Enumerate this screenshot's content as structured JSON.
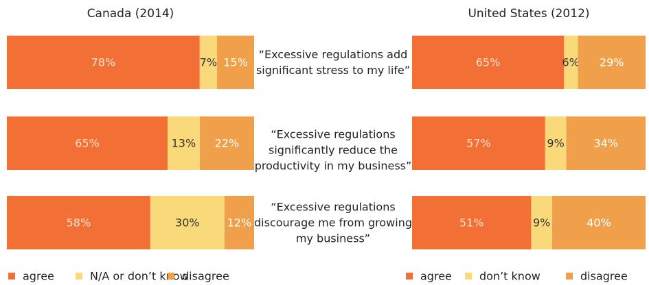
{
  "chart_data": [
    {
      "type": "bar",
      "title": "Canada (2014)",
      "categories": [
        "“Excessive regulations add significant stress to my life”",
        "“Excessive regulations significantly reduce the productivity in my business”",
        "“Excessive regulations discourage me from growing my business”"
      ],
      "xlim": [
        0,
        100
      ],
      "series": [
        {
          "name": "agree",
          "color": "#f26f36",
          "values": [
            78,
            65,
            58
          ],
          "value_labels": [
            "78%",
            "65%",
            "58%"
          ]
        },
        {
          "name": "N/A or don’t know",
          "color": "#fad97b",
          "values": [
            7,
            13,
            30
          ],
          "value_labels": [
            "7%",
            "13%",
            "30%"
          ]
        },
        {
          "name": "disagree",
          "color": "#f0a04b",
          "values": [
            15,
            22,
            12
          ],
          "value_labels": [
            "15%",
            "22%",
            "12%"
          ]
        }
      ]
    },
    {
      "type": "bar",
      "title": "United States (2012)",
      "xlim": [
        0,
        100
      ],
      "series": [
        {
          "name": "agree",
          "color": "#f26f36",
          "values": [
            65,
            57,
            51
          ],
          "value_labels": [
            "65%",
            "57%",
            "51%"
          ]
        },
        {
          "name": "don’t know",
          "color": "#fad97b",
          "values": [
            6,
            9,
            9
          ],
          "value_labels": [
            "6%",
            "9%",
            "9%"
          ]
        },
        {
          "name": "disagree",
          "color": "#f0a04b",
          "values": [
            29,
            34,
            40
          ],
          "value_labels": [
            "29%",
            "34%",
            "40%"
          ]
        }
      ]
    }
  ]
}
